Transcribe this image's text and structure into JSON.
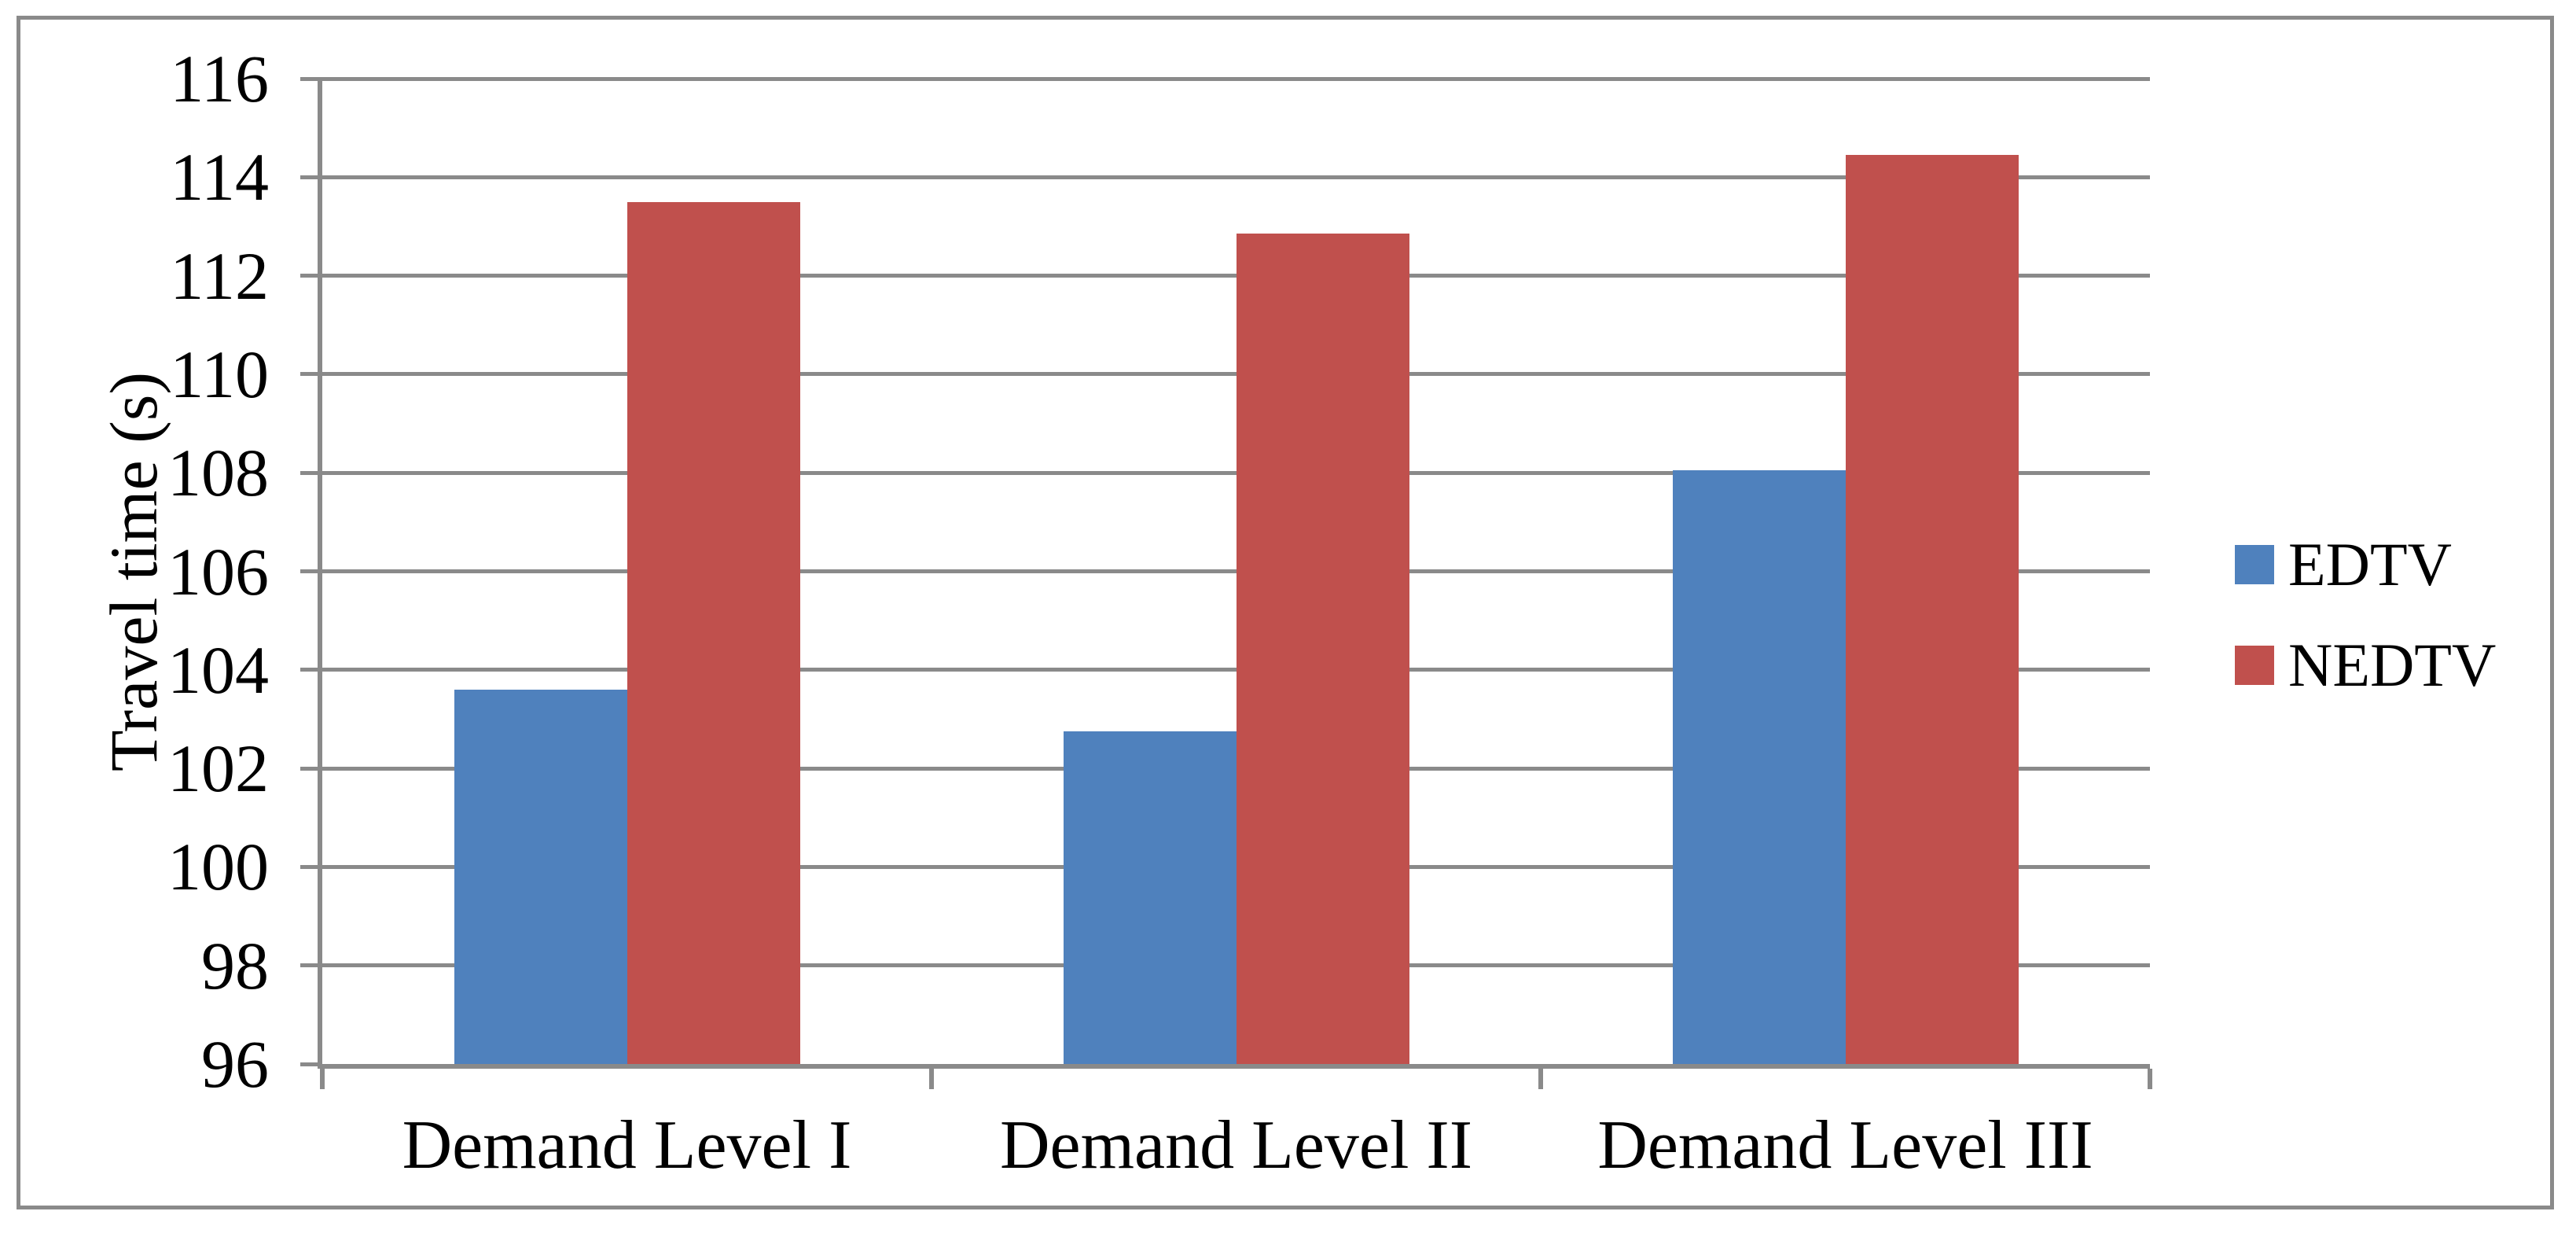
{
  "chart_data": {
    "type": "bar",
    "title": "",
    "xlabel": "",
    "ylabel": "Travel time (s)",
    "categories": [
      "Demand Level I",
      "Demand Level II",
      "Demand Level III"
    ],
    "series": [
      {
        "name": "EDTV",
        "color": "#4F81BD",
        "values": [
          103.6,
          102.75,
          108.05
        ]
      },
      {
        "name": "NEDTV",
        "color": "#C0504D",
        "values": [
          113.5,
          112.85,
          114.45
        ]
      }
    ],
    "ylim": [
      96,
      116
    ],
    "ytick_step": 2,
    "yticks": [
      "116",
      "114",
      "112",
      "110",
      "108",
      "106",
      "104",
      "102",
      "100",
      "98",
      "96"
    ],
    "grid": "horizontal-only",
    "legend_position": "right",
    "bar_baseline": 96,
    "colors": {
      "gridline": "#8A8A8A",
      "axis": "#8A8A8A",
      "frame": "#8A8A8A",
      "text": "#000000",
      "background": "#FFFFFF"
    }
  }
}
